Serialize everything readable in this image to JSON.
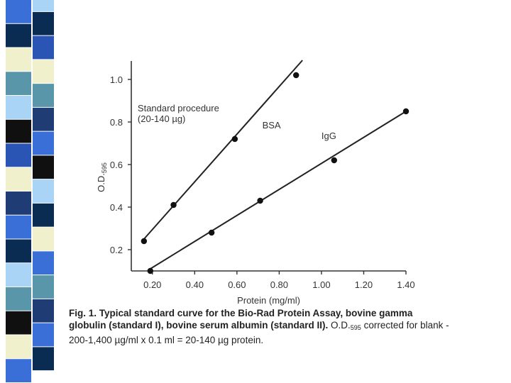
{
  "stripe": {
    "colors": [
      "#3a6fd8",
      "#0a2b52",
      "#f0f0cc",
      "#5a96aa",
      "#a9d4f5",
      "#101010",
      "#2b55b5",
      "#f0f0cc",
      "#1f3c74",
      "#3a6fd8",
      "#0a2b52",
      "#a9d4f5",
      "#5a96aa",
      "#101010",
      "#f0f0cc",
      "#3a6fd8",
      "#a9d4f5",
      "#0a2b52",
      "#2b55b5",
      "#f0f0cc",
      "#5a96aa",
      "#1f3c74",
      "#3a6fd8",
      "#101010",
      "#a9d4f5",
      "#0a2b52",
      "#f0f0cc",
      "#3a6fd8",
      "#5a96aa",
      "#1f3c74"
    ]
  },
  "chart_data": {
    "type": "line",
    "xlabel": "Protein (mg/ml)",
    "ylabel": "O.D.",
    "ylabel_sub": "595",
    "xlim": [
      0.1,
      1.4
    ],
    "ylim": [
      0.1,
      1.1
    ],
    "xticks": [
      "0.20",
      "0.40",
      "0.60",
      "0.80",
      "1.00",
      "1.20",
      "1.40"
    ],
    "yticks": [
      "0.2",
      "0.4",
      "0.6",
      "0.8",
      "1.0"
    ],
    "series": [
      {
        "name": "BSA",
        "x": [
          0.16,
          0.3,
          0.59,
          0.88
        ],
        "y": [
          0.24,
          0.41,
          0.72,
          1.02
        ],
        "fit": [
          [
            0.16,
            0.25
          ],
          [
            0.91,
            1.09
          ]
        ]
      },
      {
        "name": "IgG",
        "x": [
          0.19,
          0.48,
          0.71,
          1.06,
          1.4
        ],
        "y": [
          0.1,
          0.28,
          0.43,
          0.62,
          0.85
        ],
        "fit": [
          [
            0.19,
            0.11
          ],
          [
            1.4,
            0.85
          ]
        ]
      }
    ],
    "annotations": [
      {
        "text": "Standard procedure",
        "x": 0.13,
        "y": 0.85
      },
      {
        "text": "(20-140 µg)",
        "x": 0.13,
        "y": 0.8
      },
      {
        "text": "BSA",
        "x": 0.72,
        "y": 0.77
      },
      {
        "text": "IgG",
        "x": 1.0,
        "y": 0.72
      }
    ]
  },
  "caption": {
    "bold_text": "Fig. 1. Typical standard curve for the Bio-Rad Protein Assay, bovine gamma globulin (standard I), bovine serum albumin (standard II).",
    "od_text": " O.D.",
    "od_sub": "595",
    "rest_text": " corrected for blank - 200-1,400 µg/ml x 0.1 ml = 20-140 µg protein."
  }
}
